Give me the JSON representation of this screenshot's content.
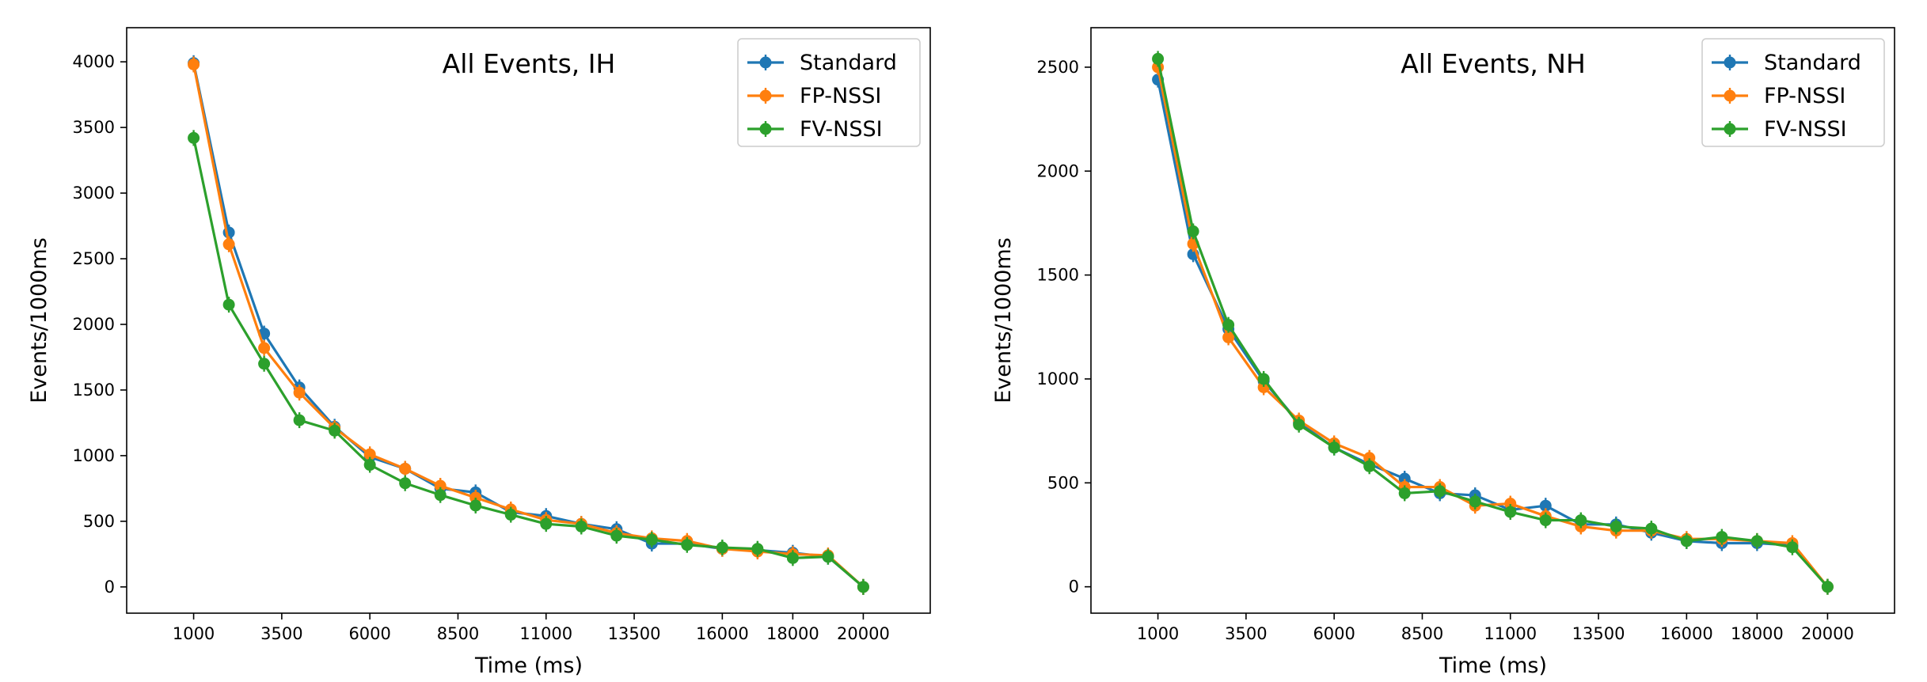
{
  "figure": {
    "panels": [
      "left",
      "right"
    ]
  },
  "chart_data": [
    {
      "type": "line",
      "title": "All Events, IH",
      "xlabel": "Time (ms)",
      "ylabel": "Events/1000ms",
      "xlim": [
        -900,
        21900
      ],
      "ylim": [
        -200,
        4260
      ],
      "xticks": [
        1000,
        3500,
        6000,
        8500,
        11000,
        13500,
        16000,
        18000,
        20000
      ],
      "xtick_labels": [
        "1000",
        "3500",
        "6000",
        "8500",
        "11000",
        "13500",
        "16000",
        "18000",
        "20000"
      ],
      "yticks": [
        0,
        500,
        1000,
        1500,
        2000,
        2500,
        3000,
        3500,
        4000
      ],
      "ytick_labels": [
        "0",
        "500",
        "1000",
        "1500",
        "2000",
        "2500",
        "3000",
        "3500",
        "4000"
      ],
      "legend_position": "top-right",
      "x": [
        1000,
        2000,
        3000,
        4000,
        5000,
        6000,
        7000,
        8000,
        9000,
        10000,
        11000,
        12000,
        13000,
        14000,
        15000,
        16000,
        17000,
        18000,
        19000,
        20000
      ],
      "series": [
        {
          "name": "Standard",
          "color": "#1f77b4",
          "values": [
            3990,
            2700,
            1930,
            1520,
            1220,
            990,
            900,
            750,
            720,
            570,
            540,
            480,
            440,
            330,
            330,
            290,
            280,
            260,
            230,
            0
          ]
        },
        {
          "name": "FP-NSSI",
          "color": "#ff7f0e",
          "values": [
            3980,
            2610,
            1820,
            1480,
            1210,
            1010,
            900,
            770,
            680,
            590,
            510,
            480,
            410,
            370,
            350,
            290,
            270,
            250,
            240,
            0
          ]
        },
        {
          "name": "FV-NSSI",
          "color": "#2ca02c",
          "values": [
            3420,
            2150,
            1700,
            1270,
            1190,
            930,
            790,
            700,
            620,
            550,
            480,
            460,
            390,
            360,
            320,
            300,
            290,
            220,
            230,
            0
          ]
        }
      ]
    },
    {
      "type": "line",
      "title": "All Events, NH",
      "xlabel": "Time (ms)",
      "ylabel": "Events/1000ms",
      "xlim": [
        -900,
        21900
      ],
      "ylim": [
        -127,
        2690
      ],
      "xticks": [
        1000,
        3500,
        6000,
        8500,
        11000,
        13500,
        16000,
        18000,
        20000
      ],
      "xtick_labels": [
        "1000",
        "3500",
        "6000",
        "8500",
        "11000",
        "13500",
        "16000",
        "18000",
        "20000"
      ],
      "yticks": [
        0,
        500,
        1000,
        1500,
        2000,
        2500
      ],
      "ytick_labels": [
        "0",
        "500",
        "1000",
        "1500",
        "2000",
        "2500"
      ],
      "legend_position": "top-right",
      "x": [
        1000,
        2000,
        3000,
        4000,
        5000,
        6000,
        7000,
        8000,
        9000,
        10000,
        11000,
        12000,
        13000,
        14000,
        15000,
        16000,
        17000,
        18000,
        19000,
        20000
      ],
      "series": [
        {
          "name": "Standard",
          "color": "#1f77b4",
          "values": [
            2440,
            1600,
            1240,
            990,
            790,
            670,
            590,
            520,
            450,
            440,
            370,
            390,
            300,
            300,
            260,
            220,
            210,
            210,
            200,
            0
          ]
        },
        {
          "name": "FP-NSSI",
          "color": "#ff7f0e",
          "values": [
            2500,
            1650,
            1200,
            960,
            800,
            690,
            620,
            480,
            480,
            390,
            400,
            340,
            290,
            270,
            270,
            230,
            230,
            220,
            210,
            0
          ]
        },
        {
          "name": "FV-NSSI",
          "color": "#2ca02c",
          "values": [
            2540,
            1710,
            1260,
            1000,
            780,
            670,
            580,
            450,
            460,
            410,
            360,
            320,
            320,
            290,
            280,
            220,
            240,
            220,
            190,
            0
          ]
        }
      ]
    }
  ]
}
